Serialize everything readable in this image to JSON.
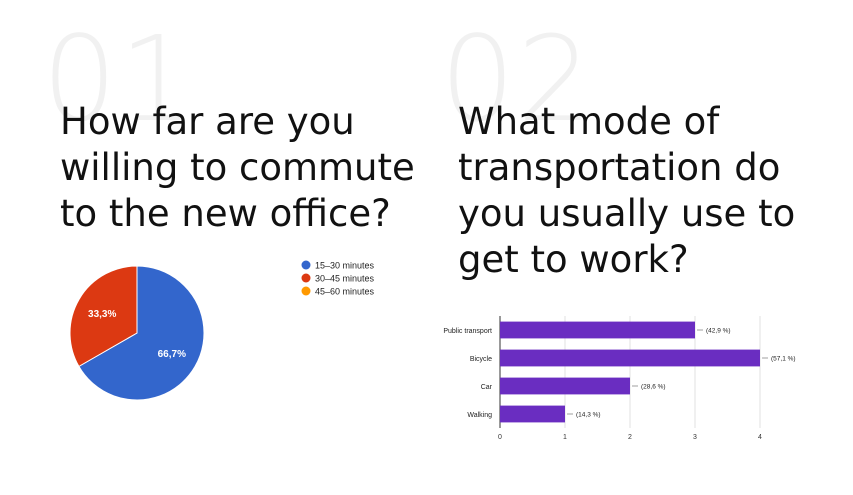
{
  "slide": {
    "num1": "01",
    "num2": "02",
    "question1": "How far are you willing to commute to the new office?",
    "question2": "What mode of transportation do you usually use to get to work?"
  },
  "chart_data": [
    {
      "type": "pie",
      "title": "",
      "slices": [
        {
          "label": "15–30 minutes",
          "value": 66.7,
          "display": "66,7%",
          "color": "#3366cc"
        },
        {
          "label": "30–45 minutes",
          "value": 33.3,
          "display": "33,3%",
          "color": "#dc3912"
        },
        {
          "label": "45–60 minutes",
          "value": 0,
          "display": "",
          "color": "#ff9900"
        }
      ],
      "legend_position": "right"
    },
    {
      "type": "bar",
      "orientation": "horizontal",
      "title": "",
      "categories": [
        "Public transport",
        "Bicycle",
        "Car",
        "Walking"
      ],
      "values": [
        3,
        4,
        2,
        1
      ],
      "value_labels": [
        "(42,9 %)",
        "(57,1 %)",
        "(28,6 %)",
        "(14,3 %)"
      ],
      "xlim": [
        0,
        4
      ],
      "xticks": [
        "0",
        "1",
        "2",
        "3",
        "4"
      ],
      "bar_color": "#6a2dc1",
      "grid": true
    }
  ]
}
